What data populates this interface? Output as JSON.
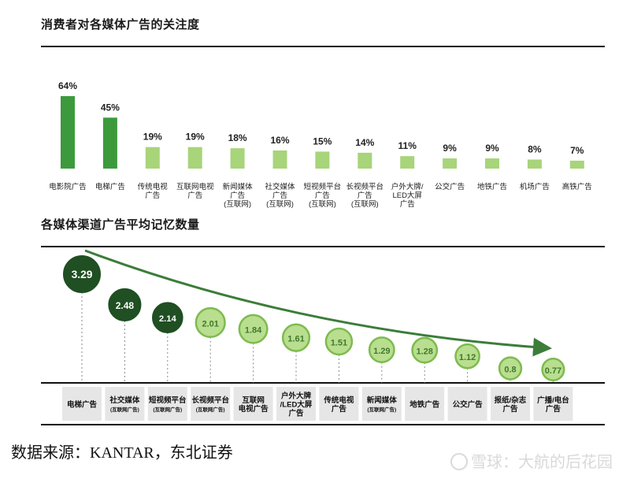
{
  "chart_data": [
    {
      "type": "bar",
      "title": "消费者对各媒体广告的关注度",
      "categories": [
        [
          "电影院广告"
        ],
        [
          "电梯广告"
        ],
        [
          "传统电视",
          "广告"
        ],
        [
          "互联网电视",
          "广告"
        ],
        [
          "新闻媒体",
          "广告",
          "(互联网)"
        ],
        [
          "社交媒体",
          "广告",
          "(互联网)"
        ],
        [
          "短视频平台",
          "广告",
          "(互联网)"
        ],
        [
          "长视频平台",
          "广告",
          "(互联网)"
        ],
        [
          "户外大牌/",
          "LED大屏",
          "广告"
        ],
        [
          "公交广告"
        ],
        [
          "地铁广告"
        ],
        [
          "机场广告"
        ],
        [
          "高铁广告"
        ]
      ],
      "values": [
        64,
        45,
        19,
        19,
        18,
        16,
        15,
        14,
        11,
        9,
        9,
        8,
        7
      ],
      "value_labels": [
        "64%",
        "45%",
        "19%",
        "19%",
        "18%",
        "16%",
        "15%",
        "14%",
        "11%",
        "9%",
        "9%",
        "8%",
        "7%"
      ],
      "ylim": [
        0,
        64
      ],
      "colors": {
        "high": "#3c9a3c",
        "low": "#a8d47a"
      }
    },
    {
      "type": "scatter",
      "title": "各媒体渠道广告平均记忆数量",
      "categories": [
        [
          "电梯广告"
        ],
        [
          "社交媒体",
          "(互联网广告)"
        ],
        [
          "短视频平台",
          "(互联网广告)"
        ],
        [
          "长视频平台",
          "(互联网广告)"
        ],
        [
          "互联网",
          "电视广告"
        ],
        [
          "户外大牌",
          "/LED大屏",
          "广告"
        ],
        [
          "传统电视",
          "广告"
        ],
        [
          "新闻媒体",
          "(互联网广告)"
        ],
        [
          "地铁广告"
        ],
        [
          "公交广告"
        ],
        [
          "报纸/杂志",
          "广告"
        ],
        [
          "广播/电台",
          "广告"
        ]
      ],
      "values": [
        3.29,
        2.48,
        2.14,
        2.01,
        1.84,
        1.61,
        1.51,
        1.29,
        1.28,
        1.12,
        0.8,
        0.77
      ],
      "value_labels": [
        "3.29",
        "2.48",
        "2.14",
        "2.01",
        "1.84",
        "1.61",
        "1.51",
        "1.29",
        "1.28",
        "1.12",
        "0.8",
        "0.77"
      ],
      "colors": {
        "dark": "#1f4f22",
        "light_fill": "#b9de8f",
        "light_stroke": "#7dbb4e",
        "arrow": "#3c7d3a",
        "label_bg": "#e6e6e6"
      }
    }
  ],
  "source": "数据来源：KANTAR，东北证券",
  "watermark": "雪球：大航的后花园"
}
